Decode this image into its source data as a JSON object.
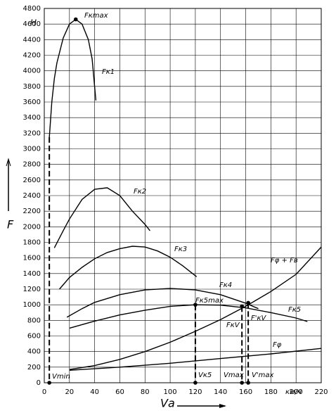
{
  "chart_data": {
    "type": "line",
    "x_unit": "км/ч",
    "y_unit": "H",
    "y_label": "F",
    "x_label": "Vа",
    "xlim": [
      0,
      220
    ],
    "ylim": [
      0,
      4800
    ],
    "xticks": [
      0,
      20,
      40,
      60,
      80,
      100,
      120,
      140,
      160,
      180,
      200,
      220
    ],
    "yticks": [
      0,
      200,
      400,
      600,
      800,
      1000,
      1200,
      1400,
      1600,
      1800,
      2000,
      2200,
      2400,
      2600,
      2800,
      3000,
      3200,
      3400,
      3600,
      3800,
      4000,
      4200,
      4400,
      4600,
      4800
    ],
    "grid": true,
    "series": [
      {
        "name": "Fк1",
        "color": "#000",
        "x": [
          4,
          6,
          8,
          10,
          15,
          20,
          25,
          30,
          35,
          38,
          41
        ],
        "values": [
          3150,
          3600,
          3900,
          4100,
          4420,
          4600,
          4660,
          4600,
          4400,
          4150,
          3620
        ]
      },
      {
        "name": "Fк2",
        "color": "#000",
        "x": [
          8,
          15,
          20,
          30,
          40,
          50,
          60,
          70,
          80,
          84
        ],
        "values": [
          1730,
          1950,
          2100,
          2350,
          2480,
          2500,
          2400,
          2200,
          2030,
          1950
        ]
      },
      {
        "name": "Fк3",
        "color": "#000",
        "x": [
          12,
          20,
          30,
          40,
          50,
          60,
          70,
          80,
          90,
          100,
          110,
          121
        ],
        "values": [
          1200,
          1350,
          1480,
          1590,
          1670,
          1720,
          1750,
          1740,
          1690,
          1610,
          1500,
          1360
        ]
      },
      {
        "name": "Fк4",
        "color": "#000",
        "x": [
          18,
          30,
          40,
          60,
          80,
          100,
          120,
          140,
          160,
          170
        ],
        "values": [
          840,
          950,
          1030,
          1130,
          1190,
          1210,
          1190,
          1130,
          1020,
          950
        ]
      },
      {
        "name": "Fк5",
        "color": "#000",
        "x": [
          20,
          40,
          60,
          80,
          100,
          120,
          140,
          160,
          180,
          200,
          209
        ],
        "values": [
          700,
          790,
          870,
          930,
          980,
          1000,
          995,
          960,
          900,
          830,
          785
        ]
      },
      {
        "name": "Fφ + Fв",
        "color": "#000",
        "x": [
          20,
          40,
          60,
          80,
          100,
          120,
          140,
          160,
          180,
          200,
          220
        ],
        "values": [
          170,
          220,
          300,
          400,
          520,
          660,
          810,
          980,
          1170,
          1390,
          1740
        ]
      },
      {
        "name": "Fφ",
        "color": "#000",
        "x": [
          20,
          60,
          100,
          140,
          180,
          220
        ],
        "values": [
          160,
          200,
          250,
          310,
          370,
          440
        ]
      }
    ],
    "points": [
      {
        "name": "Fкmax",
        "x": 25,
        "y": 4660
      },
      {
        "name": "Fк5max",
        "x": 120,
        "y": 1000
      },
      {
        "name": "FкV",
        "x": 157,
        "y": 980
      },
      {
        "name": "F'кV",
        "x": 162,
        "y": 1025
      }
    ],
    "axis_points": [
      {
        "name": "Vmin",
        "x": 4,
        "y": 3150
      },
      {
        "name": "Vк5",
        "x": 120,
        "y": 1000
      },
      {
        "name": "Vmax",
        "x": 157,
        "y": 980
      },
      {
        "name": "V'max",
        "x": 162,
        "y": 1025
      }
    ]
  }
}
